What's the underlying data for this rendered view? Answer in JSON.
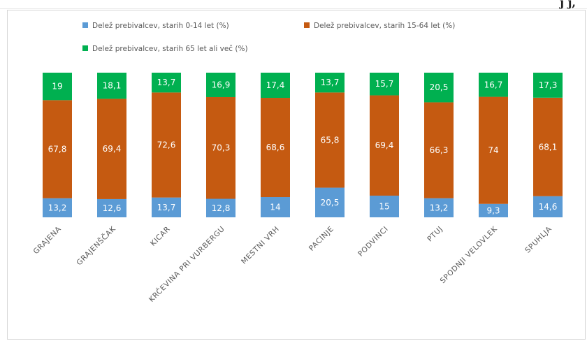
{
  "header_fragment": "j                       j,",
  "colors": {
    "s014": "#5b9bd5",
    "s1564": "#c55a11",
    "s65": "#00b050"
  },
  "chart_data": {
    "type": "bar",
    "stacked": true,
    "percent": true,
    "title": "",
    "xlabel": "",
    "ylabel": "",
    "ylim": [
      0,
      100
    ],
    "grid": false,
    "legend": "top",
    "categories": [
      "GRAJENA",
      "GRAJENŠČAK",
      "KICAR",
      "KRČEVINA PRI VURBERGU",
      "MESTNI VRH",
      "PACINJE",
      "PODVINCI",
      "PTUJ",
      "SPODNJI VELOVLEK",
      "SPUHLJA"
    ],
    "series": [
      {
        "name": "Delež prebivalcev, starih 0-14 let (%)",
        "values": [
          13.2,
          12.6,
          13.7,
          12.8,
          14,
          20.5,
          15,
          13.2,
          9.3,
          14.6
        ],
        "labels": [
          "13,2",
          "12,6",
          "13,7",
          "12,8",
          "14",
          "20,5",
          "15",
          "13,2",
          "9,3",
          "14,6"
        ]
      },
      {
        "name": "Delež prebivalcev, starih 15-64 let (%)",
        "values": [
          67.8,
          69.4,
          72.6,
          70.3,
          68.6,
          65.8,
          69.4,
          66.3,
          74,
          68.1
        ],
        "labels": [
          "67,8",
          "69,4",
          "72,6",
          "70,3",
          "68,6",
          "65,8",
          "69,4",
          "66,3",
          "74",
          "68,1"
        ]
      },
      {
        "name": "Delež prebivalcev, starih 65 let ali več (%)",
        "values": [
          19,
          18.1,
          13.7,
          16.9,
          17.4,
          13.7,
          15.7,
          20.5,
          16.7,
          17.3
        ],
        "labels": [
          "19",
          "18,1",
          "13,7",
          "16,9",
          "17,4",
          "13,7",
          "15,7",
          "20,5",
          "16,7",
          "17,3"
        ]
      }
    ]
  }
}
